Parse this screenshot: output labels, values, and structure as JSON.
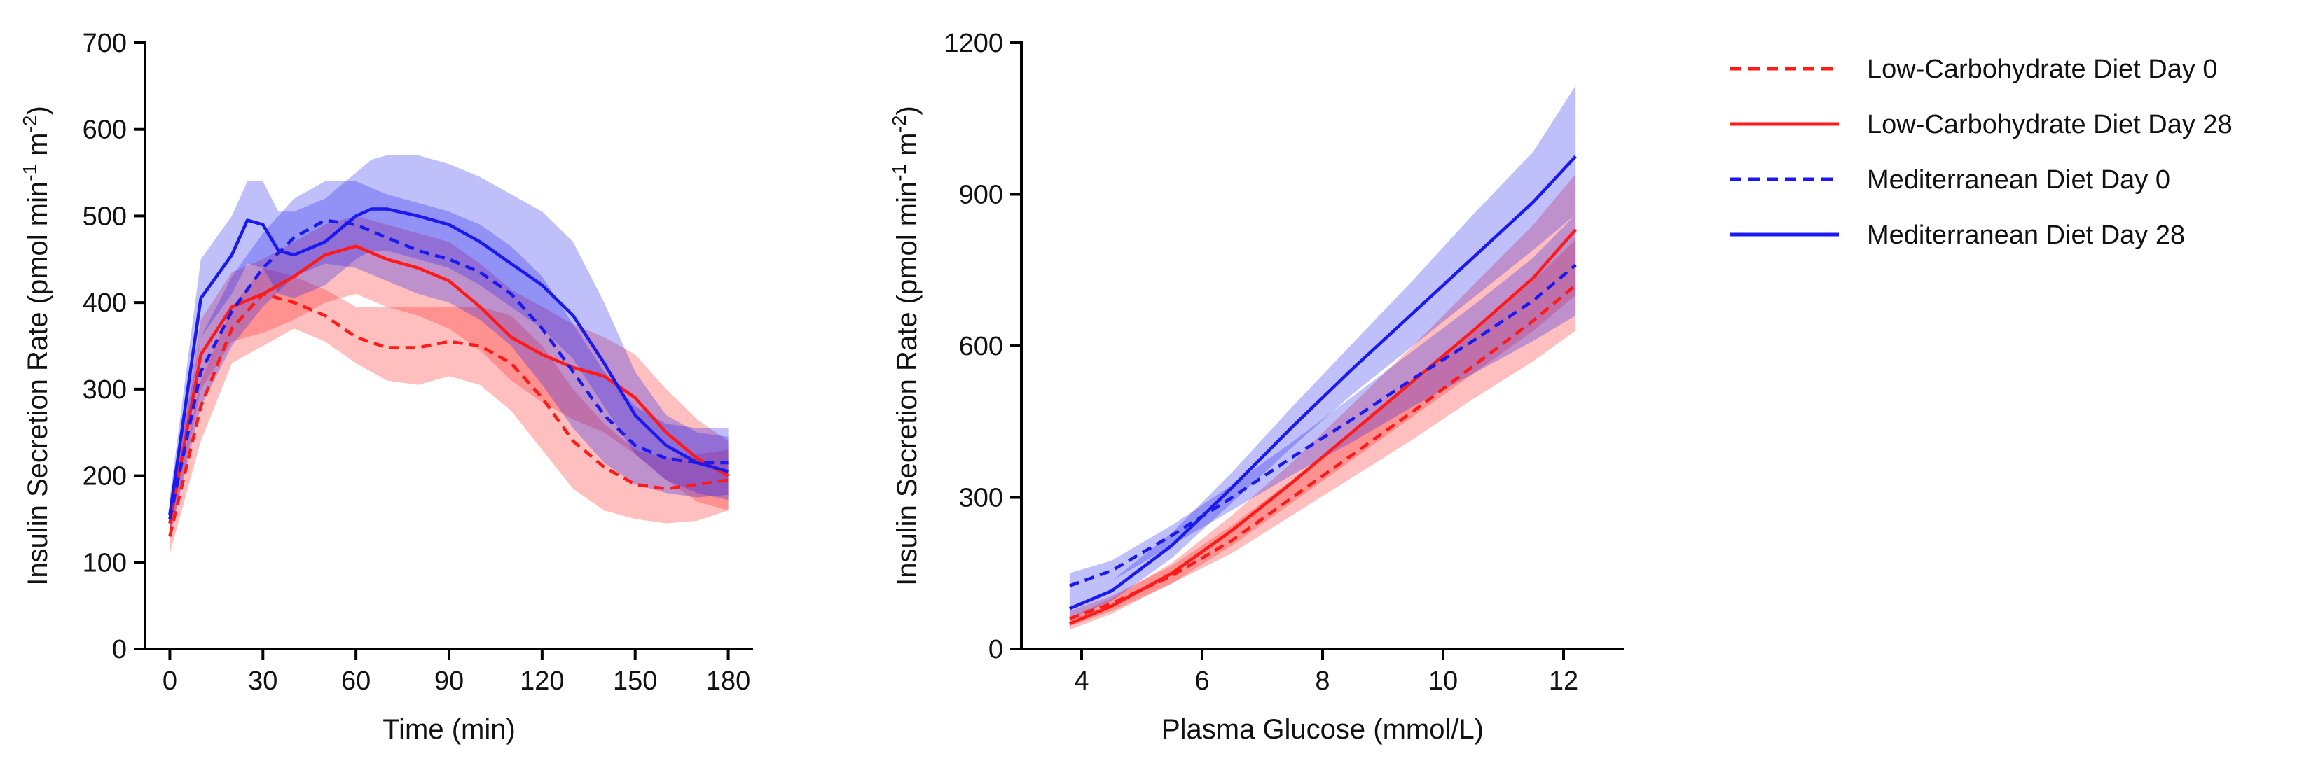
{
  "chart_data": [
    {
      "type": "line",
      "id": "left",
      "xlabel": "Time (min)",
      "ylabel": {
        "main": "Insulin Secretion Rate (pmol min",
        "sup1": "-1",
        "mid": " m",
        "sup2": "-2",
        "end": ")"
      },
      "xlim": [
        -8,
        188
      ],
      "ylim": [
        0,
        700
      ],
      "xticks": [
        0,
        30,
        60,
        90,
        120,
        150,
        180
      ],
      "yticks": [
        0,
        100,
        200,
        300,
        400,
        500,
        600,
        700
      ],
      "series": [
        {
          "name": "Low-Carbohydrate Diet Day 0",
          "color": "#ff1a1a",
          "dashed": true,
          "x": [
            0,
            10,
            20,
            30,
            40,
            50,
            60,
            70,
            80,
            90,
            100,
            110,
            120,
            130,
            140,
            150,
            160,
            170,
            180
          ],
          "y": [
            130,
            280,
            370,
            410,
            400,
            385,
            360,
            348,
            348,
            355,
            350,
            330,
            290,
            240,
            210,
            190,
            185,
            190,
            195
          ],
          "lower": [
            110,
            240,
            330,
            350,
            370,
            355,
            330,
            310,
            305,
            315,
            305,
            275,
            230,
            185,
            160,
            150,
            145,
            148,
            160
          ],
          "upper": [
            150,
            310,
            395,
            440,
            430,
            415,
            395,
            395,
            395,
            395,
            395,
            385,
            350,
            300,
            260,
            230,
            220,
            225,
            230
          ]
        },
        {
          "name": "Low-Carbohydrate Diet Day 28",
          "color": "#ff1a1a",
          "dashed": false,
          "x": [
            0,
            10,
            20,
            30,
            40,
            50,
            60,
            70,
            80,
            90,
            100,
            110,
            120,
            130,
            140,
            150,
            160,
            170,
            180
          ],
          "y": [
            145,
            340,
            395,
            410,
            430,
            455,
            465,
            450,
            440,
            425,
            395,
            360,
            340,
            325,
            315,
            290,
            250,
            220,
            200
          ],
          "lower": [
            125,
            300,
            355,
            365,
            380,
            400,
            410,
            395,
            385,
            370,
            345,
            310,
            285,
            265,
            250,
            225,
            195,
            170,
            160
          ],
          "upper": [
            165,
            380,
            435,
            450,
            470,
            490,
            500,
            490,
            480,
            470,
            445,
            415,
            395,
            375,
            360,
            340,
            300,
            265,
            240
          ]
        },
        {
          "name": "Mediterranean Diet Day 0",
          "color": "#1a1aee",
          "dashed": true,
          "x": [
            0,
            10,
            20,
            30,
            40,
            50,
            60,
            70,
            80,
            90,
            100,
            110,
            120,
            130,
            140,
            150,
            160,
            170,
            180
          ],
          "y": [
            150,
            320,
            390,
            440,
            475,
            495,
            490,
            475,
            460,
            450,
            435,
            410,
            370,
            320,
            270,
            235,
            220,
            215,
            215
          ],
          "lower": [
            130,
            280,
            350,
            395,
            430,
            445,
            440,
            425,
            410,
            400,
            380,
            350,
            305,
            255,
            215,
            190,
            180,
            175,
            178
          ],
          "upper": [
            170,
            360,
            430,
            480,
            520,
            540,
            540,
            525,
            515,
            505,
            490,
            465,
            430,
            375,
            320,
            280,
            260,
            255,
            255
          ]
        },
        {
          "name": "Mediterranean Diet Day 28",
          "color": "#1a1aee",
          "dashed": false,
          "x": [
            0,
            10,
            20,
            25,
            30,
            35,
            40,
            50,
            60,
            65,
            70,
            80,
            90,
            100,
            110,
            120,
            130,
            140,
            150,
            160,
            170,
            180
          ],
          "y": [
            155,
            405,
            455,
            495,
            490,
            460,
            455,
            470,
            500,
            508,
            508,
            500,
            490,
            470,
            445,
            420,
            385,
            330,
            270,
            235,
            215,
            205
          ],
          "lower": [
            135,
            360,
            410,
            445,
            440,
            410,
            405,
            420,
            450,
            460,
            460,
            450,
            440,
            420,
            395,
            370,
            335,
            280,
            225,
            195,
            180,
            172
          ],
          "upper": [
            175,
            450,
            500,
            540,
            540,
            505,
            505,
            520,
            550,
            565,
            570,
            570,
            560,
            545,
            525,
            505,
            470,
            400,
            320,
            270,
            250,
            245
          ]
        }
      ]
    },
    {
      "type": "line",
      "id": "right",
      "xlabel": "Plasma Glucose (mmol/L)",
      "ylabel": {
        "main": "Insulin Secretion Rate (pmol min",
        "sup1": "-1",
        "mid": " m",
        "sup2": "-2",
        "end": ")"
      },
      "xlim": [
        3,
        13
      ],
      "ylim": [
        0,
        1200
      ],
      "xticks": [
        4,
        6,
        8,
        10,
        12
      ],
      "yticks": [
        0,
        300,
        600,
        900,
        1200
      ],
      "series": [
        {
          "name": "Low-Carbohydrate Diet Day 0",
          "color": "#ff1a1a",
          "dashed": true,
          "x": [
            3.8,
            4.5,
            5.5,
            6.5,
            7.5,
            8.5,
            9.5,
            10.5,
            11.5,
            12.2
          ],
          "y": [
            60,
            90,
            145,
            215,
            300,
            385,
            470,
            560,
            650,
            720
          ],
          "lower": [
            45,
            75,
            130,
            190,
            265,
            340,
            415,
            495,
            570,
            630
          ],
          "upper": [
            75,
            105,
            165,
            245,
            335,
            430,
            525,
            625,
            730,
            810
          ]
        },
        {
          "name": "Low-Carbohydrate Diet Day 28",
          "color": "#ff1a1a",
          "dashed": false,
          "x": [
            3.8,
            4.5,
            5.5,
            6.5,
            7.5,
            8.5,
            9.5,
            10.5,
            11.5,
            12.2
          ],
          "y": [
            50,
            85,
            150,
            235,
            330,
            430,
            530,
            630,
            735,
            830
          ],
          "lower": [
            38,
            70,
            130,
            205,
            290,
            375,
            460,
            545,
            630,
            700
          ],
          "upper": [
            62,
            100,
            170,
            265,
            370,
            485,
            600,
            720,
            840,
            940
          ]
        },
        {
          "name": "Mediterranean Diet Day 0",
          "color": "#1a1aee",
          "dashed": true,
          "x": [
            3.8,
            4.5,
            5.5,
            6.5,
            7.5,
            8.5,
            9.5,
            10.5,
            11.5,
            12.2
          ],
          "y": [
            125,
            155,
            225,
            300,
            380,
            455,
            535,
            610,
            690,
            760
          ],
          "lower": [
            100,
            135,
            205,
            275,
            345,
            410,
            480,
            545,
            610,
            660
          ],
          "upper": [
            150,
            175,
            245,
            325,
            410,
            500,
            590,
            680,
            775,
            860
          ]
        },
        {
          "name": "Mediterranean Diet Day 28",
          "color": "#1a1aee",
          "dashed": false,
          "x": [
            3.8,
            4.5,
            5.5,
            6.5,
            7.5,
            8.5,
            9.5,
            10.5,
            11.5,
            12.2
          ],
          "y": [
            80,
            115,
            205,
            320,
            440,
            555,
            665,
            775,
            885,
            975
          ],
          "lower": [
            60,
            95,
            180,
            290,
            400,
            505,
            600,
            695,
            790,
            860
          ],
          "upper": [
            100,
            135,
            230,
            350,
            480,
            605,
            730,
            860,
            985,
            1115
          ]
        }
      ]
    }
  ],
  "legend": [
    {
      "label": "Low-Carbohydrate Diet Day 0",
      "color": "#ff1a1a",
      "dashed": true
    },
    {
      "label": "Low-Carbohydrate Diet Day 28",
      "color": "#ff1a1a",
      "dashed": false
    },
    {
      "label": "Mediterranean Diet Day 0",
      "color": "#1a1aee",
      "dashed": true
    },
    {
      "label": "Mediterranean Diet Day 28",
      "color": "#1a1aee",
      "dashed": false
    }
  ]
}
